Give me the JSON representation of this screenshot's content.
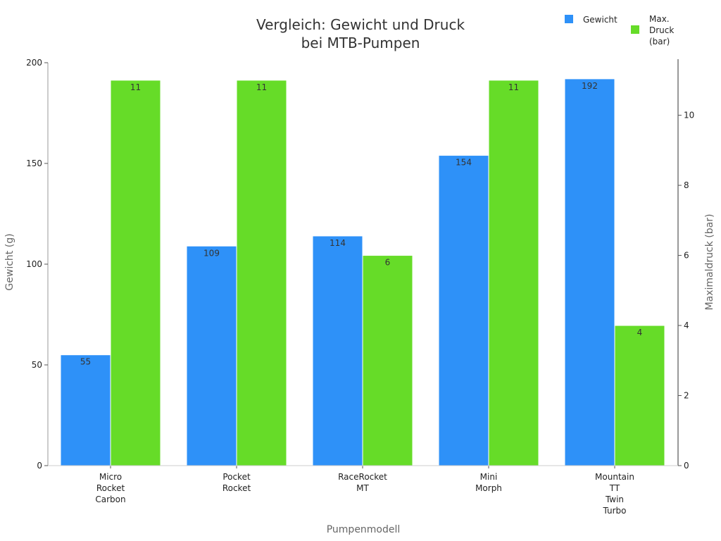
{
  "chart_data": {
    "type": "bar",
    "title_lines": [
      "Vergleich: Gewicht und Druck",
      "bei MTB-Pumpen"
    ],
    "xlabel": "Pumpenmodell",
    "ylabel_left": "Gewicht (g)",
    "ylabel_right": "Maximaldruck (bar)",
    "categories": [
      [
        "Micro",
        "Rocket",
        "Carbon"
      ],
      [
        "Pocket",
        "Rocket"
      ],
      [
        "RaceRocket",
        "MT"
      ],
      [
        "Mini",
        "Morph"
      ],
      [
        "Mountain",
        "TT",
        "Twin",
        "Turbo"
      ]
    ],
    "series": [
      {
        "name": "Gewicht",
        "axis": "left",
        "color": "#2e91f8",
        "values": [
          55,
          109,
          114,
          154,
          192
        ],
        "labels": [
          "55",
          "109",
          "114",
          "154",
          "192"
        ]
      },
      {
        "name": "Max. Druck (bar)",
        "legend_lines": [
          "Max.",
          "Druck",
          "(bar)"
        ],
        "axis": "right",
        "color": "#66dc28",
        "values": [
          11,
          11,
          6,
          11,
          4
        ],
        "labels": [
          "11",
          "11",
          "6",
          "11",
          "4"
        ]
      }
    ],
    "left_axis": {
      "ylim": [
        0,
        200
      ],
      "ticks": [
        0,
        50,
        100,
        150,
        200
      ]
    },
    "right_axis": {
      "ylim": [
        0,
        11.5
      ],
      "ticks": [
        0,
        2,
        4,
        6,
        8,
        10
      ]
    },
    "grid": false,
    "legend_position": "top-right"
  }
}
